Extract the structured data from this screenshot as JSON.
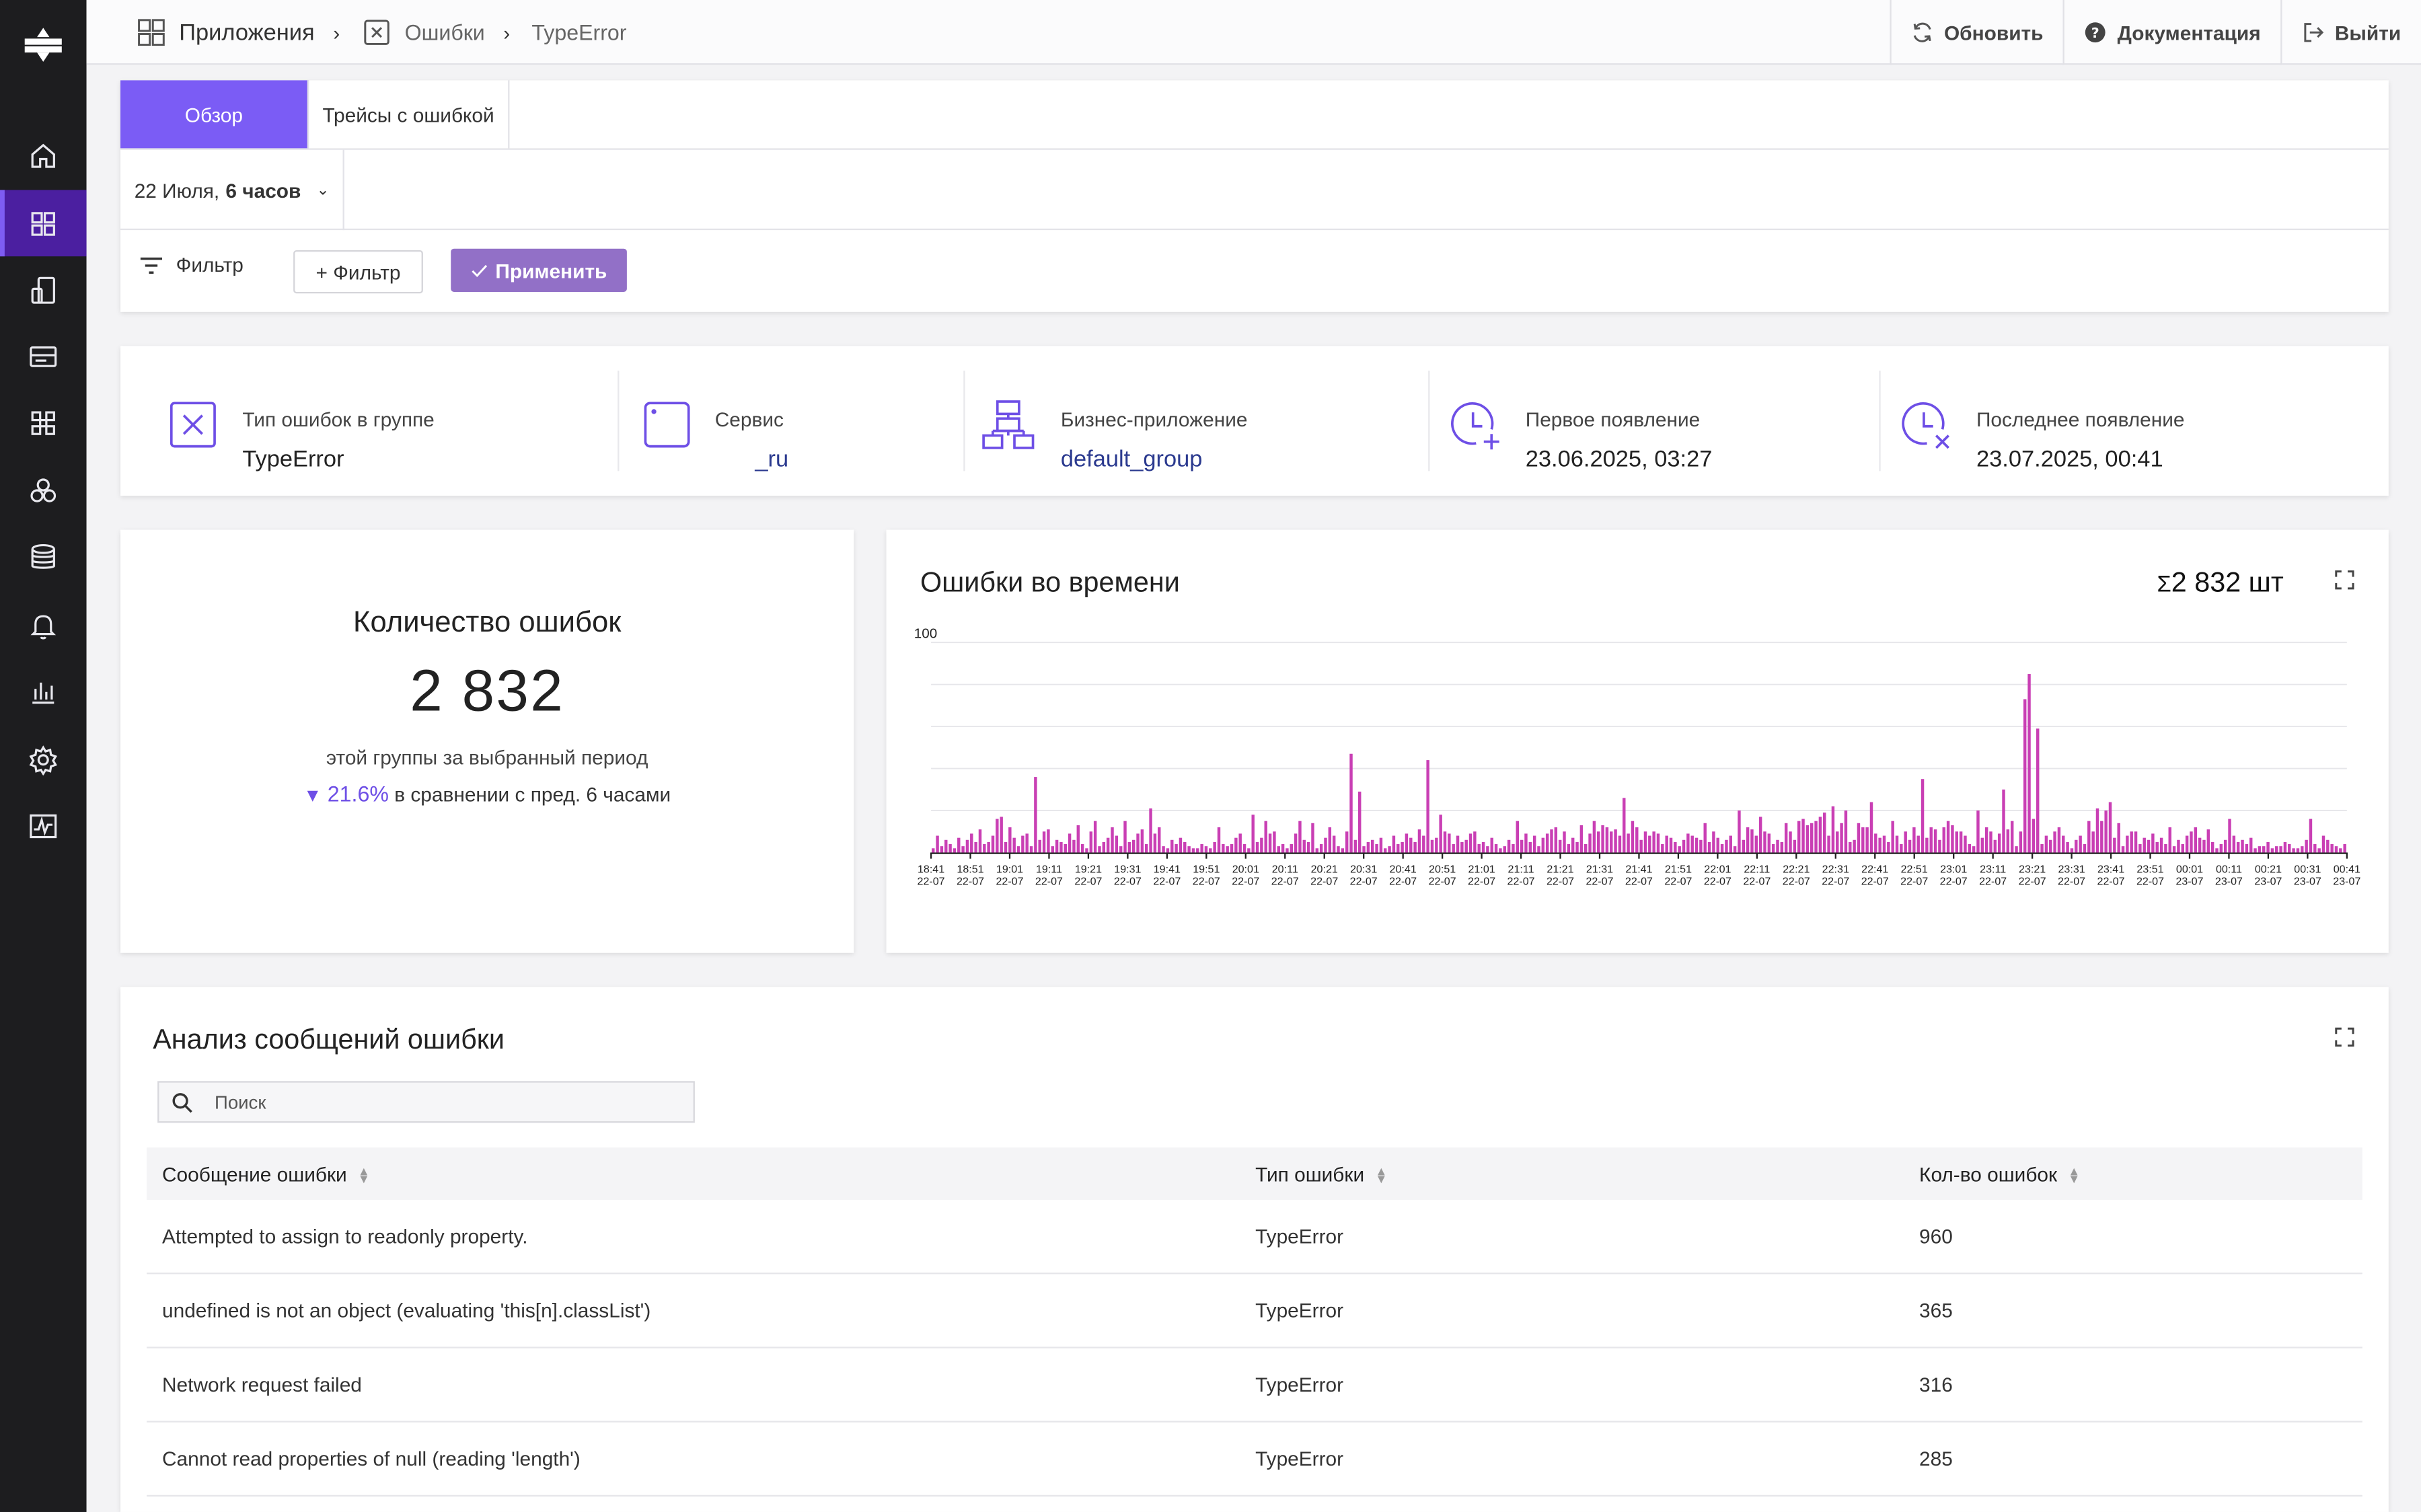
{
  "topbar": {
    "crumbs": [
      "Приложения",
      "Ошибки",
      "TypeError"
    ],
    "refresh_label": "Обновить",
    "docs_label": "Документация",
    "logout_label": "Выйти"
  },
  "tabs": [
    "Обзор",
    "Трейсы с ошибкой"
  ],
  "period": {
    "date": "22 Июля,",
    "range": "6 часов"
  },
  "filter": {
    "label": "Фильтр",
    "add_label": "+ Фильтр",
    "apply_label": "Применить"
  },
  "info": {
    "error_type": {
      "label": "Тип ошибок в группе",
      "value": "TypeError"
    },
    "service": {
      "label": "Сервис",
      "value": "_ru"
    },
    "business_app": {
      "label": "Бизнес-приложение",
      "value": "default_group"
    },
    "first_seen": {
      "label": "Первое появление",
      "value": "23.06.2025, 03:27"
    },
    "last_seen": {
      "label": "Последнее появление",
      "value": "23.07.2025, 00:41"
    }
  },
  "count": {
    "title": "Количество ошибок",
    "value": "2 832",
    "subtitle": "этой группы за выбранный период",
    "change": "21.6%",
    "change_text": "в сравнении с пред. 6 часами",
    "change_direction": "down"
  },
  "chart_title": "Ошибки во времени",
  "chart_sum": "2 832 шт",
  "chart_data": {
    "type": "bar",
    "title": "Ошибки во времени",
    "y_tick_label": "100",
    "ylim": [
      0,
      100
    ],
    "bar_color": "#c93fb4",
    "tick_labels": [
      [
        "18:41",
        "22-07"
      ],
      [
        "18:51",
        "22-07"
      ],
      [
        "19:01",
        "22-07"
      ],
      [
        "19:11",
        "22-07"
      ],
      [
        "19:21",
        "22-07"
      ],
      [
        "19:31",
        "22-07"
      ],
      [
        "19:41",
        "22-07"
      ],
      [
        "19:51",
        "22-07"
      ],
      [
        "20:01",
        "22-07"
      ],
      [
        "20:11",
        "22-07"
      ],
      [
        "20:21",
        "22-07"
      ],
      [
        "20:31",
        "22-07"
      ],
      [
        "20:41",
        "22-07"
      ],
      [
        "20:51",
        "22-07"
      ],
      [
        "21:01",
        "22-07"
      ],
      [
        "21:11",
        "22-07"
      ],
      [
        "21:21",
        "22-07"
      ],
      [
        "21:31",
        "22-07"
      ],
      [
        "21:41",
        "22-07"
      ],
      [
        "21:51",
        "22-07"
      ],
      [
        "22:01",
        "22-07"
      ],
      [
        "22:11",
        "22-07"
      ],
      [
        "22:21",
        "22-07"
      ],
      [
        "22:31",
        "22-07"
      ],
      [
        "22:41",
        "22-07"
      ],
      [
        "22:51",
        "22-07"
      ],
      [
        "23:01",
        "22-07"
      ],
      [
        "23:11",
        "22-07"
      ],
      [
        "23:21",
        "22-07"
      ],
      [
        "23:31",
        "22-07"
      ],
      [
        "23:41",
        "22-07"
      ],
      [
        "23:51",
        "22-07"
      ],
      [
        "00:01",
        "23-07"
      ],
      [
        "00:11",
        "23-07"
      ],
      [
        "00:21",
        "23-07"
      ],
      [
        "00:31",
        "23-07"
      ],
      [
        "00:41",
        "23-07"
      ]
    ],
    "values": [
      2,
      8,
      3,
      6,
      4,
      2,
      7,
      3,
      6,
      9,
      5,
      11,
      4,
      5,
      8,
      16,
      17,
      5,
      12,
      7,
      3,
      8,
      9,
      3,
      36,
      6,
      10,
      11,
      3,
      6,
      5,
      4,
      9,
      6,
      13,
      4,
      2,
      10,
      15,
      3,
      5,
      7,
      12,
      8,
      3,
      15,
      5,
      6,
      9,
      11,
      4,
      21,
      9,
      12,
      3,
      2,
      6,
      4,
      7,
      5,
      3,
      2,
      2,
      4,
      3,
      2,
      5,
      12,
      4,
      3,
      4,
      7,
      9,
      4,
      2,
      18,
      5,
      7,
      15,
      9,
      10,
      3,
      4,
      2,
      4,
      9,
      15,
      6,
      5,
      14,
      2,
      4,
      7,
      12,
      8,
      3,
      2,
      10,
      47,
      6,
      29,
      3,
      5,
      6,
      4,
      7,
      2,
      3,
      8,
      4,
      5,
      9,
      7,
      5,
      11,
      8,
      44,
      6,
      7,
      18,
      10,
      9,
      4,
      8,
      5,
      6,
      9,
      10,
      4,
      5,
      3,
      7,
      4,
      2,
      3,
      6,
      4,
      15,
      6,
      9,
      5,
      8,
      3,
      7,
      9,
      11,
      12,
      6,
      10,
      4,
      7,
      5,
      13,
      4,
      9,
      15,
      10,
      13,
      12,
      10,
      11,
      8,
      26,
      9,
      15,
      12,
      6,
      10,
      8,
      10,
      9,
      4,
      8,
      7,
      5,
      3,
      6,
      9,
      8,
      7,
      6,
      14,
      5,
      10,
      7,
      4,
      6,
      8,
      3,
      20,
      6,
      12,
      11,
      8,
      17,
      10,
      9,
      4,
      6,
      5,
      14,
      10,
      6,
      15,
      16,
      13,
      14,
      15,
      17,
      19,
      8,
      22,
      10,
      14,
      20,
      5,
      6,
      14,
      12,
      12,
      24,
      9,
      7,
      8,
      5,
      15,
      8,
      4,
      10,
      6,
      12,
      8,
      35,
      7,
      12,
      11,
      6,
      12,
      15,
      13,
      10,
      10,
      8,
      4,
      3,
      20,
      7,
      12,
      10,
      6,
      9,
      30,
      11,
      15,
      3,
      10,
      73,
      85,
      16,
      59,
      4,
      8,
      6,
      10,
      12,
      8,
      5,
      2,
      6,
      8,
      4,
      15,
      10,
      21,
      15,
      20,
      24,
      7,
      14,
      3,
      8,
      10,
      10,
      4,
      7,
      6,
      9,
      5,
      7,
      4,
      12,
      3,
      6,
      4,
      8,
      10,
      12,
      7,
      6,
      11,
      5,
      2,
      4,
      6,
      16,
      8,
      5,
      6,
      4,
      7,
      2,
      3,
      3,
      5,
      2,
      3,
      3,
      5,
      4,
      2,
      2,
      3,
      6,
      16,
      4,
      2,
      8,
      6,
      4,
      3,
      2,
      4
    ]
  },
  "analysis": {
    "title": "Анализ сообщений ошибки",
    "search_placeholder": "Поиск",
    "columns": [
      "Сообщение ошибки",
      "Тип ошибки",
      "Кол-во ошибок"
    ],
    "rows": [
      [
        "Attempted to assign to readonly property.",
        "TypeError",
        "960"
      ],
      [
        "undefined is not an object (evaluating 'this[n].classList')",
        "TypeError",
        "365"
      ],
      [
        "Network request failed",
        "TypeError",
        "316"
      ],
      [
        "Cannot read properties of null (reading 'length')",
        "TypeError",
        "285"
      ]
    ]
  },
  "colors": {
    "accent": "#7b5cf5",
    "apply_button": "#9270c7",
    "sidebar_bg": "#1d1d1f",
    "sidebar_active": "#4b1fa0",
    "link": "#2b3a8f",
    "bar": "#c93fb4"
  },
  "icons": {
    "sidebar": [
      "home-icon",
      "apps-grid-icon",
      "devices-icon",
      "server-icon",
      "command-icon",
      "cluster-icon",
      "database-icon",
      "bell-icon",
      "bar-chart-icon",
      "settings-icon",
      "activity-icon"
    ]
  }
}
